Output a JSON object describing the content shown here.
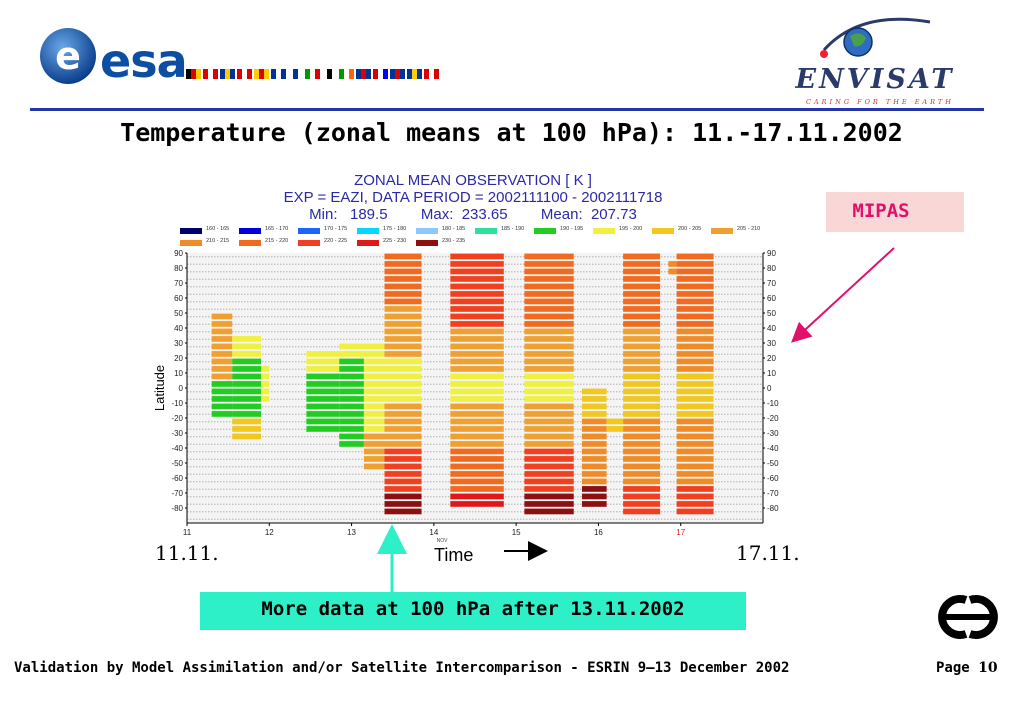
{
  "header": {
    "esa_logo_text": "esa",
    "envisat_name": "ENVISAT",
    "envisat_tagline": "CARING FOR THE EARTH",
    "flag_colors": [
      [
        "#000",
        "#d00",
        "#fc0"
      ],
      [
        "#d00",
        "#fff",
        "#d00"
      ],
      [
        "#003399",
        "#fc0",
        "#003399"
      ],
      [
        "#d00",
        "#fff",
        "#d00"
      ],
      [
        "#fc0",
        "#d00",
        "#fc0"
      ],
      [
        "#003399",
        "#fff",
        "#003399"
      ],
      [
        "#fff",
        "#003399",
        "#fff"
      ],
      [
        "#090",
        "#fff",
        "#d00"
      ],
      [
        "#fff",
        "#000",
        "#fff"
      ],
      [
        "#090",
        "#fff",
        "#f60"
      ],
      [
        "#003399",
        "#d00",
        "#003399"
      ],
      [
        "#d00",
        "#fff",
        "#00f"
      ],
      [
        "#003399",
        "#d00",
        "#003399"
      ],
      [
        "#003399",
        "#fc0",
        "#003399"
      ],
      [
        "#d00",
        "#fff",
        "#d00"
      ]
    ]
  },
  "slide_title": "Temperature (zonal means at 100 hPa): 11.-17.11.2002",
  "mipas_label": "MIPAS",
  "date_start": "11.11.",
  "date_end": "17.11.",
  "time_label": "Time",
  "note": "More data at 100 hPa after 13.11.2002",
  "footer": {
    "text": "Validation by Model Assimilation and/or Satellite Intercomparison - ESRIN 9–13 December 2002",
    "page_label": "Page",
    "page_number": "10"
  },
  "chart_data": {
    "type": "heatmap",
    "title_lines": [
      "ZONAL MEAN OBSERVATION [ K ]",
      "EXP = EAZI, DATA PERIOD = 2002111100 - 2002111718",
      "Min:   189.5        Max:  233.65        Mean:  207.73"
    ],
    "ylabel": "Latitude",
    "xlabel": "Time",
    "xlim": [
      11,
      18
    ],
    "ylim": [
      -90,
      90
    ],
    "x_ticks": [
      "11",
      "12",
      "13",
      "14",
      "15",
      "16",
      "17"
    ],
    "x_tick_highlight": "17",
    "x_month_label": "NOV",
    "y_ticks": [
      90,
      80,
      70,
      60,
      50,
      40,
      30,
      20,
      10,
      0,
      -10,
      -20,
      -30,
      -40,
      -50,
      -60,
      -70,
      -80
    ],
    "legend": [
      {
        "label": "160 - 165",
        "color": "#00006e"
      },
      {
        "label": "165 - 170",
        "color": "#0000d8"
      },
      {
        "label": "170 - 175",
        "color": "#1e64ff"
      },
      {
        "label": "175 - 180",
        "color": "#00d8ff"
      },
      {
        "label": "180 - 185",
        "color": "#8cc8ff"
      },
      {
        "label": "185 - 190",
        "color": "#2ee0a0"
      },
      {
        "label": "190 - 195",
        "color": "#22cc22"
      },
      {
        "label": "195 - 200",
        "color": "#f0f040"
      },
      {
        "label": "200 - 205",
        "color": "#f0c820"
      },
      {
        "label": "205 - 210",
        "color": "#f0a030"
      },
      {
        "label": "210 - 215",
        "color": "#f08c28"
      },
      {
        "label": "215 - 220",
        "color": "#f06a20"
      },
      {
        "label": "220 - 225",
        "color": "#f04020"
      },
      {
        "label": "225 - 230",
        "color": "#e01818"
      },
      {
        "label": "230 - 235",
        "color": "#8c1010"
      }
    ],
    "band_lat_step": 5,
    "columns": [
      {
        "t0": 11.3,
        "t1": 11.55,
        "cells": [
          [
            -20,
            5,
            192
          ],
          [
            5,
            50,
            206
          ]
        ]
      },
      {
        "t0": 11.55,
        "t1": 11.9,
        "cells": [
          [
            -35,
            -20,
            200
          ],
          [
            -20,
            20,
            193
          ],
          [
            20,
            35,
            198
          ]
        ]
      },
      {
        "t0": 11.9,
        "t1": 12.0,
        "cells": [
          [
            -10,
            15,
            196
          ]
        ]
      },
      {
        "t0": 12.45,
        "t1": 12.85,
        "cells": [
          [
            -30,
            10,
            193
          ],
          [
            10,
            25,
            198
          ]
        ]
      },
      {
        "t0": 12.85,
        "t1": 13.15,
        "cells": [
          [
            -40,
            20,
            193
          ],
          [
            20,
            30,
            199
          ]
        ]
      },
      {
        "t0": 13.15,
        "t1": 13.4,
        "cells": [
          [
            -55,
            -30,
            208
          ],
          [
            -30,
            30,
            197
          ]
        ]
      },
      {
        "t0": 13.4,
        "t1": 13.85,
        "cells": [
          [
            -85,
            -70,
            232
          ],
          [
            -70,
            -40,
            222
          ],
          [
            -40,
            -10,
            206
          ],
          [
            -10,
            20,
            196
          ],
          [
            20,
            55,
            206
          ],
          [
            55,
            90,
            217
          ]
        ]
      },
      {
        "t0": 14.2,
        "t1": 14.85,
        "cells": [
          [
            -80,
            -70,
            226
          ],
          [
            -70,
            -40,
            218
          ],
          [
            -40,
            -10,
            206
          ],
          [
            -10,
            10,
            196
          ],
          [
            10,
            40,
            208
          ],
          [
            40,
            90,
            220
          ]
        ]
      },
      {
        "t0": 15.1,
        "t1": 15.7,
        "cells": [
          [
            -85,
            -70,
            230
          ],
          [
            -70,
            -40,
            220
          ],
          [
            -40,
            -10,
            206
          ],
          [
            -10,
            10,
            197
          ],
          [
            10,
            40,
            208
          ],
          [
            40,
            90,
            218
          ]
        ]
      },
      {
        "t0": 15.8,
        "t1": 16.1,
        "cells": [
          [
            -80,
            -65,
            230
          ],
          [
            -65,
            -20,
            212
          ],
          [
            -20,
            0,
            200
          ]
        ]
      },
      {
        "t0": 16.1,
        "t1": 16.3,
        "cells": [
          [
            -30,
            -20,
            200
          ]
        ]
      },
      {
        "t0": 16.3,
        "t1": 16.75,
        "cells": [
          [
            -85,
            -65,
            224
          ],
          [
            -65,
            -20,
            212
          ],
          [
            -20,
            10,
            201
          ],
          [
            10,
            40,
            208
          ],
          [
            40,
            90,
            218
          ]
        ]
      },
      {
        "t0": 16.85,
        "t1": 16.95,
        "cells": [
          [
            75,
            85,
            213
          ]
        ]
      },
      {
        "t0": 16.95,
        "t1": 17.4,
        "cells": [
          [
            -85,
            -65,
            224
          ],
          [
            -65,
            -20,
            212
          ],
          [
            -20,
            10,
            204
          ],
          [
            10,
            40,
            210
          ],
          [
            40,
            90,
            216
          ]
        ]
      }
    ]
  }
}
